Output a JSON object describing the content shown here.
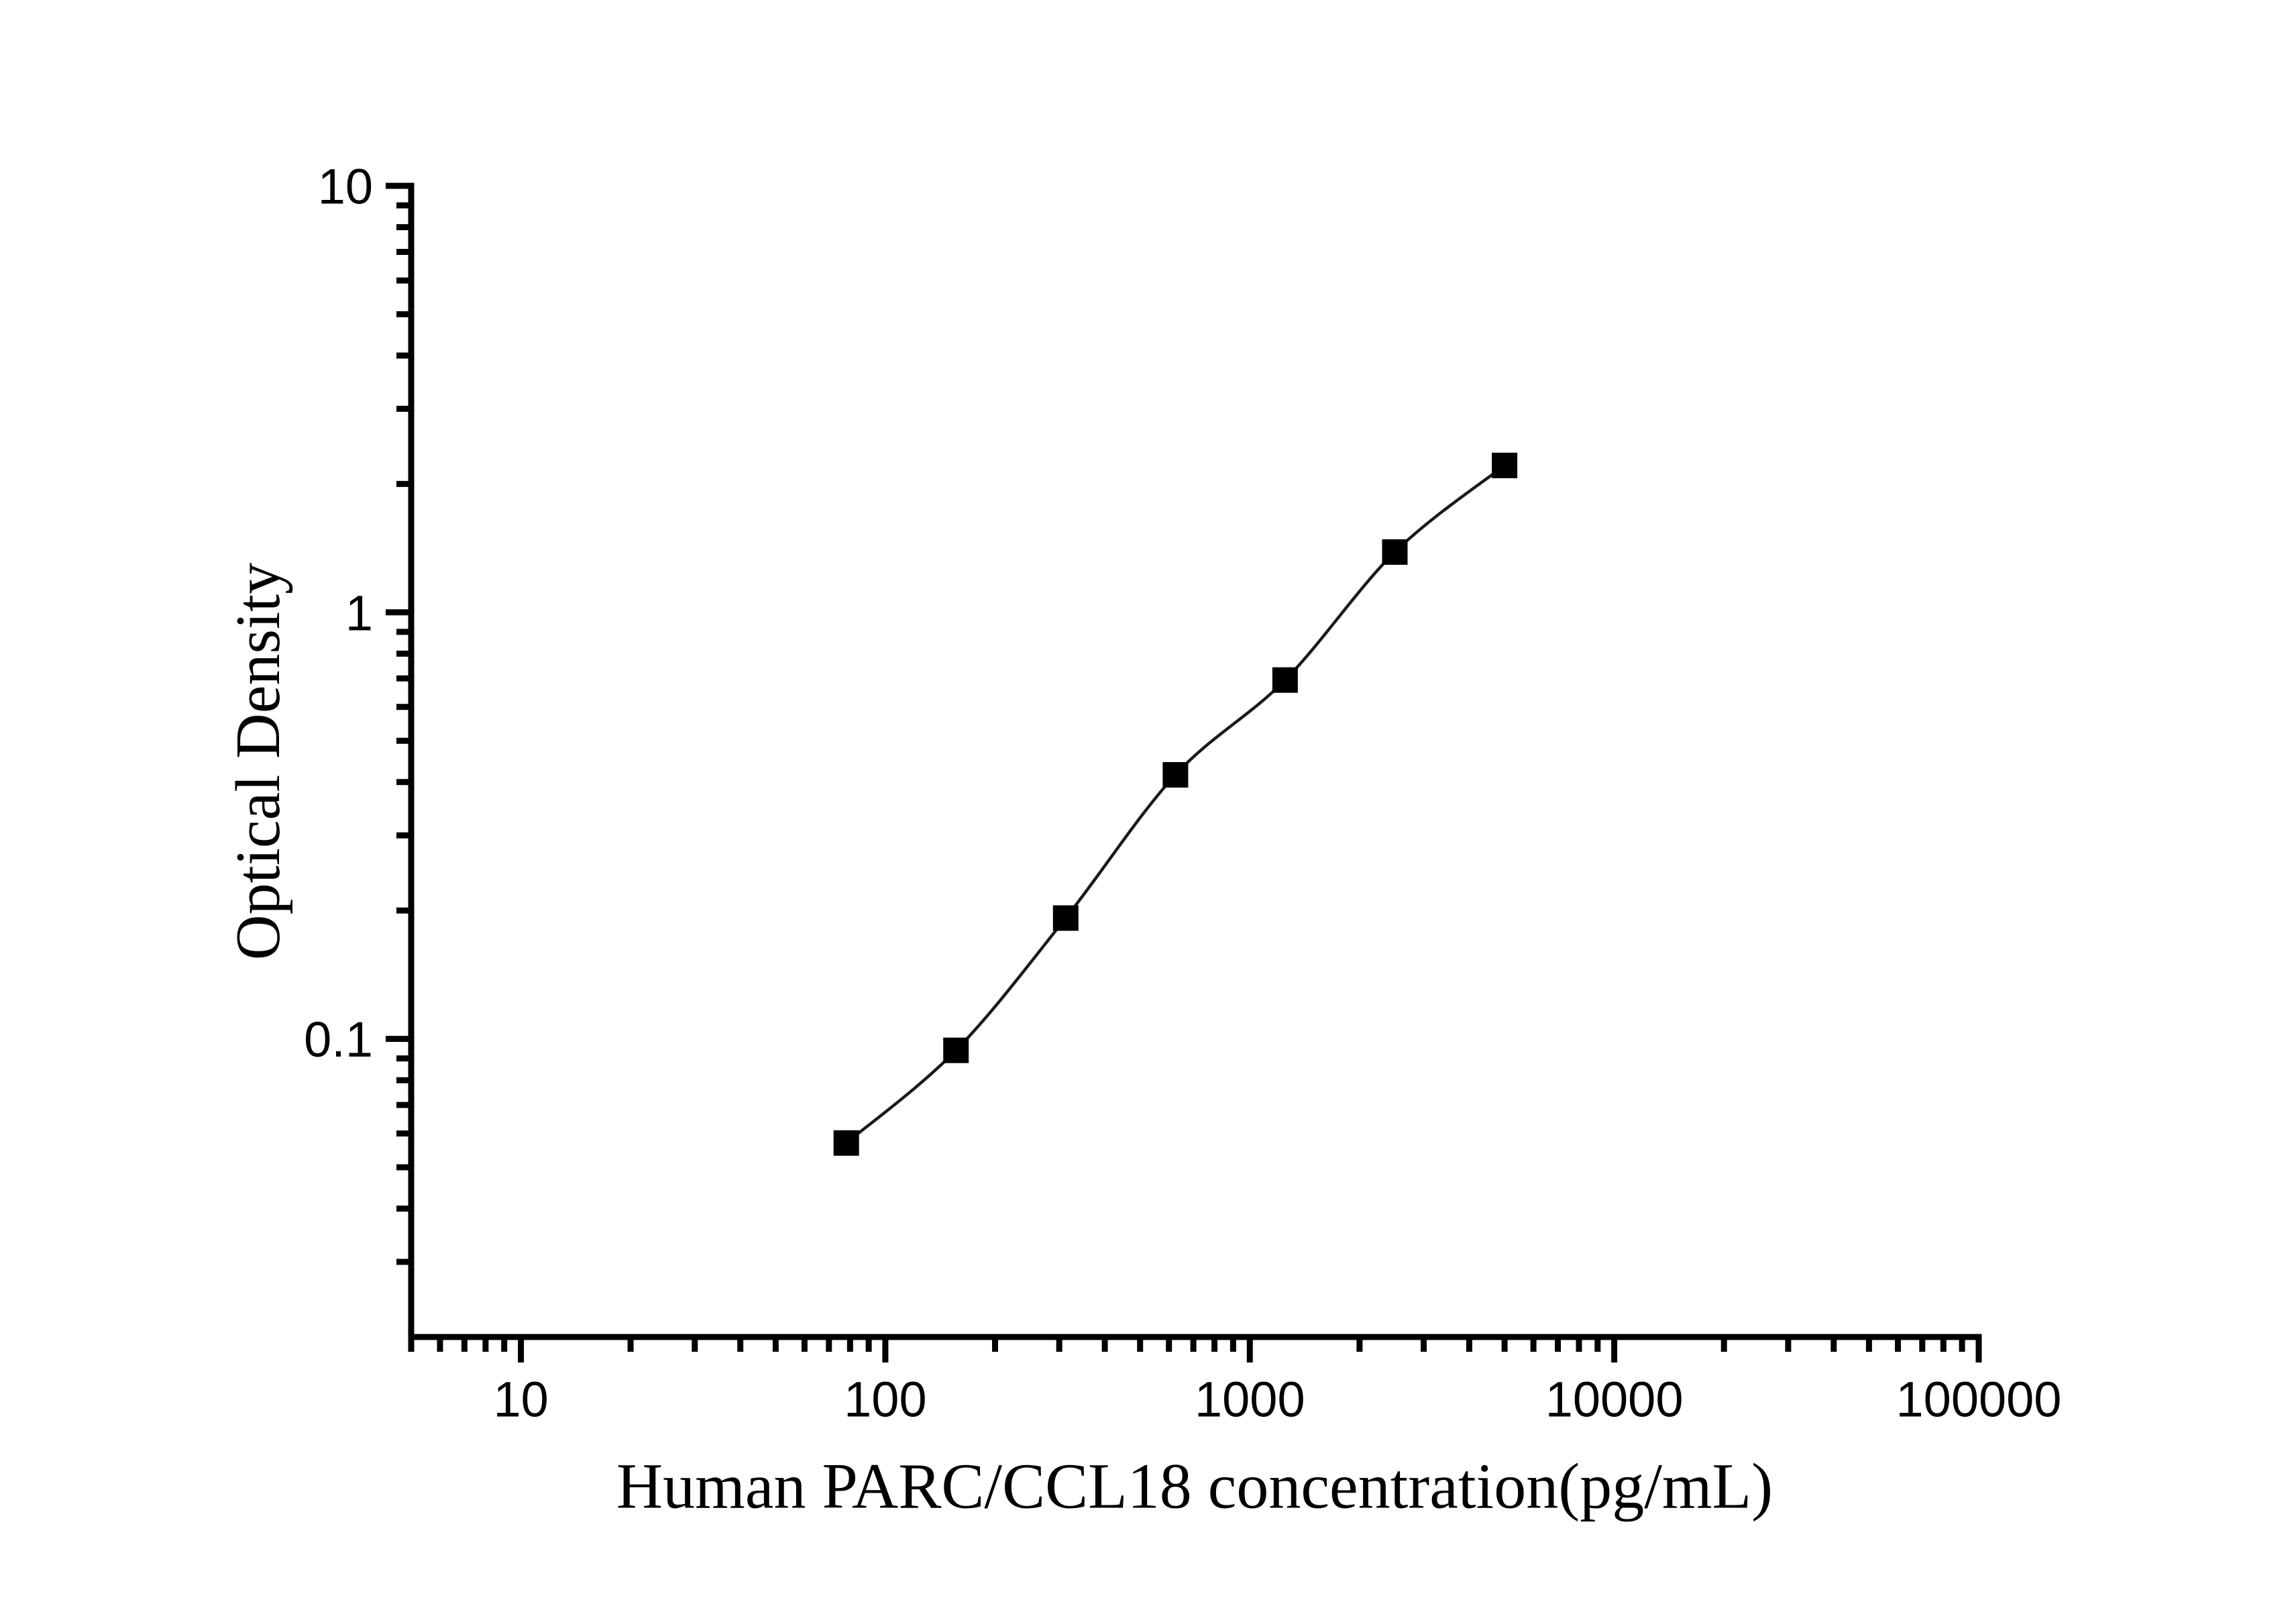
{
  "figure": {
    "background": "#ffffff",
    "ink_color": "#000000"
  },
  "chart_data": {
    "type": "scatter",
    "title": "",
    "xlabel": "Human PARC/CCL18 concentration(pg/mL)",
    "ylabel": "Optical Density",
    "x_scale": "log",
    "y_scale": "log",
    "xlim": [
      5,
      100000
    ],
    "ylim": [
      0.02,
      10
    ],
    "x": [
      78.125,
      156.25,
      312.5,
      625,
      1250,
      2500,
      5000
    ],
    "y": [
      0.057,
      0.094,
      0.192,
      0.416,
      0.694,
      1.385,
      2.21
    ],
    "x_major_ticks": [
      10,
      100,
      1000,
      10000,
      100000
    ],
    "x_major_tick_labels": [
      "10",
      "100",
      "1000",
      "10000",
      "100000"
    ],
    "x_minor_ticks": [
      5,
      6,
      7,
      8,
      9,
      20,
      30,
      40,
      50,
      60,
      70,
      80,
      90,
      200,
      300,
      400,
      500,
      600,
      700,
      800,
      900,
      2000,
      3000,
      4000,
      5000,
      6000,
      7000,
      8000,
      9000,
      20000,
      30000,
      40000,
      50000,
      60000,
      70000,
      80000,
      90000
    ],
    "y_major_ticks": [
      10,
      1,
      0.1
    ],
    "y_major_tick_labels": [
      "10",
      "1",
      "0.1"
    ],
    "y_minor_ticks": [
      9,
      8,
      7,
      6,
      5,
      4,
      3,
      2,
      0.9,
      0.8,
      0.7,
      0.6,
      0.5,
      0.4,
      0.3,
      0.2,
      0.09,
      0.08,
      0.07,
      0.06,
      0.05,
      0.04,
      0.03
    ],
    "marker": "filled-square",
    "marker_color": "#000000",
    "line_color": "#1a1a1a",
    "line_style": "smooth",
    "grid": false,
    "legend": false
  }
}
